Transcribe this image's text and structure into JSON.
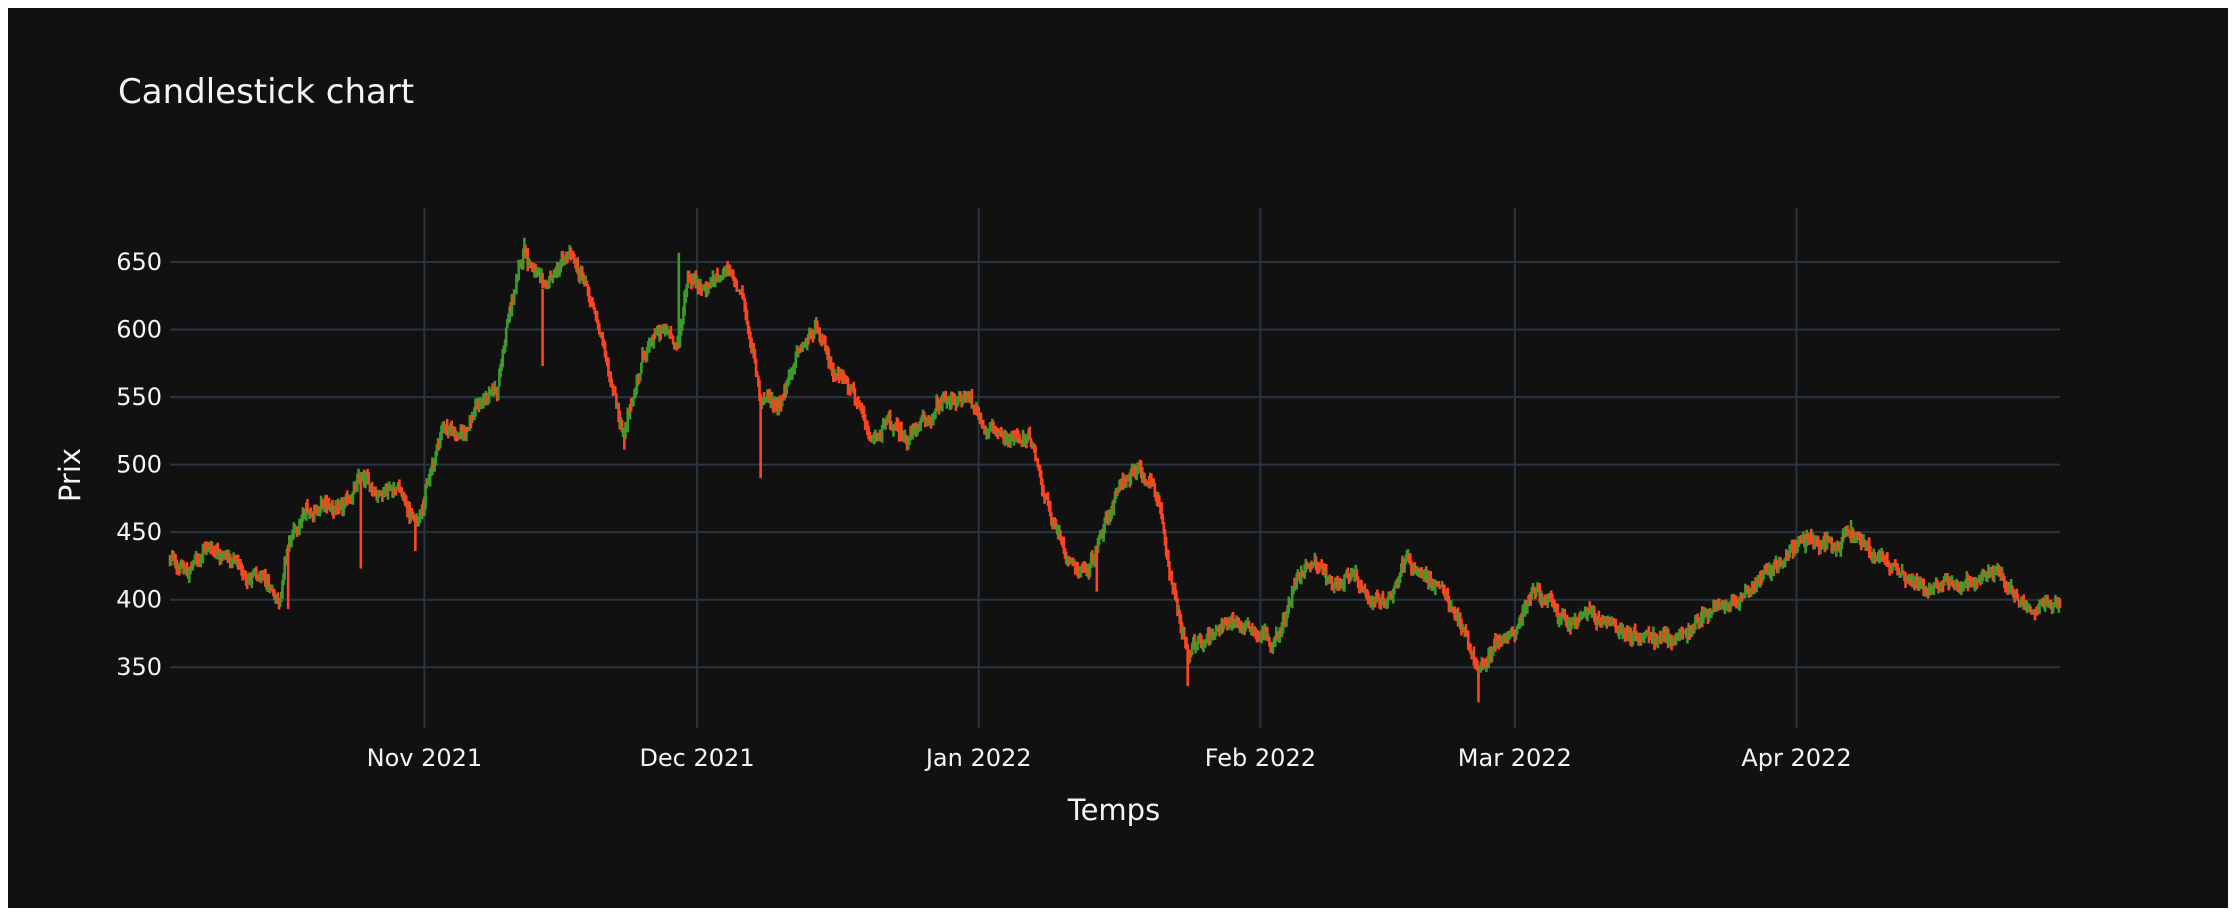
{
  "chart_data": {
    "type": "candlestick",
    "title": "Candlestick chart",
    "xlabel": "Temps",
    "ylabel": "Prix",
    "x_range": [
      "2021-10-04",
      "2022-04-30"
    ],
    "ylim": [
      305,
      690
    ],
    "y_ticks": [
      350,
      400,
      450,
      500,
      550,
      600,
      650
    ],
    "x_ticks": [
      {
        "date": "2021-11-01",
        "label": "Nov 2021"
      },
      {
        "date": "2021-12-01",
        "label": "Dec 2021"
      },
      {
        "date": "2022-01-01",
        "label": "Jan 2022"
      },
      {
        "date": "2022-02-01",
        "label": "Feb 2022"
      },
      {
        "date": "2022-03-01",
        "label": "Mar 2022"
      },
      {
        "date": "2022-04-01",
        "label": "Apr 2022"
      }
    ],
    "grid": true,
    "colors": {
      "increasing": "#3d9a2a",
      "decreasing": "#ff4422",
      "background": "#111111",
      "grid": "#283442",
      "text": "#f2f5fa"
    },
    "price_path": [
      [
        "2021-10-04",
        430
      ],
      [
        "2021-10-06",
        420
      ],
      [
        "2021-10-08",
        440
      ],
      [
        "2021-10-10",
        435
      ],
      [
        "2021-10-12",
        420
      ],
      [
        "2021-10-15",
        410
      ],
      [
        "2021-10-16",
        400
      ],
      [
        "2021-10-17",
        440
      ],
      [
        "2021-10-19",
        465
      ],
      [
        "2021-10-21",
        470
      ],
      [
        "2021-10-23",
        465
      ],
      [
        "2021-10-25",
        490
      ],
      [
        "2021-10-27",
        480
      ],
      [
        "2021-10-29",
        485
      ],
      [
        "2021-10-31",
        455
      ],
      [
        "2021-11-02",
        500
      ],
      [
        "2021-11-03",
        530
      ],
      [
        "2021-11-05",
        520
      ],
      [
        "2021-11-07",
        545
      ],
      [
        "2021-11-09",
        555
      ],
      [
        "2021-11-10",
        600
      ],
      [
        "2021-11-12",
        660
      ],
      [
        "2021-11-14",
        630
      ],
      [
        "2021-11-17",
        655
      ],
      [
        "2021-11-19",
        630
      ],
      [
        "2021-11-21",
        580
      ],
      [
        "2021-11-23",
        520
      ],
      [
        "2021-11-25",
        580
      ],
      [
        "2021-11-27",
        600
      ],
      [
        "2021-11-29",
        590
      ],
      [
        "2021-11-30",
        640
      ],
      [
        "2021-12-02",
        630
      ],
      [
        "2021-12-04",
        645
      ],
      [
        "2021-12-06",
        625
      ],
      [
        "2021-12-08",
        550
      ],
      [
        "2021-12-10",
        545
      ],
      [
        "2021-12-12",
        580
      ],
      [
        "2021-12-14",
        600
      ],
      [
        "2021-12-16",
        570
      ],
      [
        "2021-12-18",
        560
      ],
      [
        "2021-12-20",
        515
      ],
      [
        "2021-12-22",
        530
      ],
      [
        "2021-12-24",
        520
      ],
      [
        "2021-12-26",
        530
      ],
      [
        "2021-12-28",
        545
      ],
      [
        "2021-12-31",
        550
      ],
      [
        "2022-01-02",
        525
      ],
      [
        "2022-01-05",
        520
      ],
      [
        "2022-01-07",
        515
      ],
      [
        "2022-01-09",
        460
      ],
      [
        "2022-01-11",
        430
      ],
      [
        "2022-01-13",
        420
      ],
      [
        "2022-01-15",
        460
      ],
      [
        "2022-01-17",
        490
      ],
      [
        "2022-01-19",
        495
      ],
      [
        "2022-01-21",
        470
      ],
      [
        "2022-01-22",
        420
      ],
      [
        "2022-01-24",
        360
      ],
      [
        "2022-01-26",
        370
      ],
      [
        "2022-01-28",
        385
      ],
      [
        "2022-01-31",
        380
      ],
      [
        "2022-02-03",
        370
      ],
      [
        "2022-02-05",
        415
      ],
      [
        "2022-02-07",
        430
      ],
      [
        "2022-02-09",
        410
      ],
      [
        "2022-02-11",
        420
      ],
      [
        "2022-02-13",
        395
      ],
      [
        "2022-02-15",
        400
      ],
      [
        "2022-02-17",
        430
      ],
      [
        "2022-02-19",
        420
      ],
      [
        "2022-02-21",
        405
      ],
      [
        "2022-02-23",
        385
      ],
      [
        "2022-02-25",
        345
      ],
      [
        "2022-02-27",
        370
      ],
      [
        "2022-03-01",
        375
      ],
      [
        "2022-03-03",
        410
      ],
      [
        "2022-03-05",
        395
      ],
      [
        "2022-03-07",
        380
      ],
      [
        "2022-03-09",
        390
      ],
      [
        "2022-03-12",
        380
      ],
      [
        "2022-03-14",
        375
      ],
      [
        "2022-03-17",
        370
      ],
      [
        "2022-03-20",
        375
      ],
      [
        "2022-03-23",
        395
      ],
      [
        "2022-03-26",
        405
      ],
      [
        "2022-03-29",
        420
      ],
      [
        "2022-04-01",
        440
      ],
      [
        "2022-04-03",
        445
      ],
      [
        "2022-04-05",
        435
      ],
      [
        "2022-04-07",
        450
      ],
      [
        "2022-04-09",
        440
      ],
      [
        "2022-04-11",
        425
      ],
      [
        "2022-04-13",
        420
      ],
      [
        "2022-04-15",
        405
      ],
      [
        "2022-04-17",
        415
      ],
      [
        "2022-04-20",
        410
      ],
      [
        "2022-04-23",
        420
      ],
      [
        "2022-04-25",
        405
      ],
      [
        "2022-04-27",
        395
      ],
      [
        "2022-04-28",
        400
      ],
      [
        "2022-04-30",
        395
      ]
    ],
    "notable_wicks": [
      {
        "date": "2021-10-17",
        "low": 393
      },
      {
        "date": "2021-10-25",
        "low": 423
      },
      {
        "date": "2021-10-31",
        "low": 436
      },
      {
        "date": "2021-11-12",
        "high": 668
      },
      {
        "date": "2021-11-14",
        "low": 573
      },
      {
        "date": "2021-11-23",
        "low": 511
      },
      {
        "date": "2021-11-29",
        "high": 657
      },
      {
        "date": "2021-12-08",
        "low": 490
      },
      {
        "date": "2022-01-14",
        "low": 406
      },
      {
        "date": "2022-01-24",
        "low": 336
      },
      {
        "date": "2022-02-25",
        "low": 324
      },
      {
        "date": "2022-04-07",
        "high": 459
      }
    ]
  }
}
